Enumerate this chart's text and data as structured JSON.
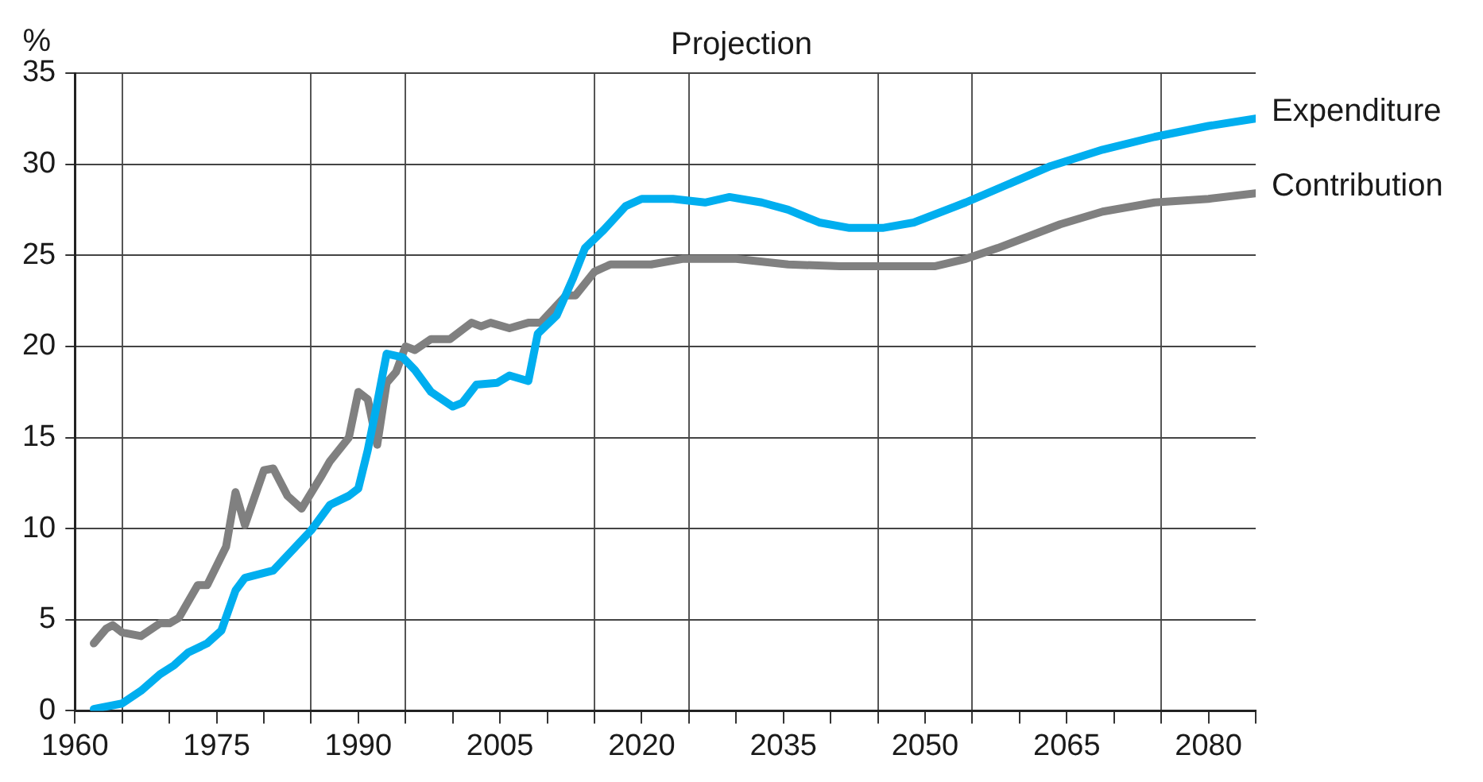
{
  "chart_data": {
    "type": "line",
    "title": "Projection",
    "ylabel": "%",
    "xlim": [
      1960,
      2085
    ],
    "xticks": [
      1960,
      {
        "value": 1965,
        "label": null
      },
      {
        "value": 1970,
        "label": null
      },
      1975,
      {
        "value": 1980,
        "label": null
      },
      {
        "value": 1985,
        "label": null
      },
      1990,
      {
        "value": 1995,
        "label": null
      },
      {
        "value": 2000,
        "label": null
      },
      2005,
      {
        "value": 2010,
        "label": null
      },
      {
        "value": 2015,
        "label": null
      },
      2020,
      {
        "value": 2025,
        "label": null
      },
      {
        "value": 2030,
        "label": null
      },
      2035,
      {
        "value": 2040,
        "label": null
      },
      {
        "value": 2045,
        "label": null
      },
      2050,
      {
        "value": 2055,
        "label": null
      },
      {
        "value": 2060,
        "label": null
      },
      2065,
      {
        "value": 2070,
        "label": null
      },
      {
        "value": 2075,
        "label": null
      },
      2080,
      {
        "value": 2085,
        "label": null
      }
    ],
    "ylim": [
      0,
      35
    ],
    "yticks": [
      0,
      5,
      10,
      15,
      20,
      25,
      30,
      35
    ],
    "grid": true,
    "legend": false,
    "marker": "none",
    "line_style": "solid",
    "series": [
      {
        "name": "Expenditure",
        "color": "#00aeef",
        "x": [
          1962,
          1965,
          1967,
          1969,
          1970.5,
          1972,
          1974,
          1975.5,
          1977,
          1978,
          1981,
          1985,
          1987,
          1989,
          1990,
          1991,
          1992,
          1993,
          1994.7,
          1996,
          1997.7,
          2000,
          2001,
          2002.5,
          2004.7,
          2006,
          2008,
          2009,
          2011,
          2012.7,
          2014,
          2016,
          2018.3,
          2020,
          2023.3,
          2026.7,
          2029.3,
          2032.7,
          2035.5,
          2038.8,
          2042,
          2045.5,
          2048.8,
          2054.3,
          2063.3,
          2068.8,
          2074.3,
          2080,
          2085
        ],
        "values": [
          0.1,
          0.4,
          1.1,
          2.0,
          2.5,
          3.2,
          3.7,
          4.4,
          6.6,
          7.3,
          7.7,
          9.9,
          11.3,
          11.8,
          12.2,
          14.3,
          16.9,
          19.6,
          19.4,
          18.7,
          17.5,
          16.7,
          16.9,
          17.9,
          18.0,
          18.4,
          18.1,
          20.7,
          21.7,
          23.7,
          25.4,
          26.4,
          27.7,
          28.1,
          28.1,
          27.9,
          28.2,
          27.9,
          27.5,
          26.8,
          26.5,
          26.5,
          26.8,
          27.9,
          29.9,
          30.8,
          31.5,
          32.1,
          32.5
        ]
      },
      {
        "name": "Contribution",
        "color": "#808080",
        "x": [
          1962,
          1963.3,
          1964,
          1965,
          1967,
          1969,
          1970,
          1971,
          1973,
          1974,
          1976,
          1977,
          1978,
          1980,
          1981,
          1982.5,
          1984,
          1986,
          1987,
          1989,
          1990,
          1991,
          1992,
          1993,
          1994,
          1995,
          1996,
          1997.7,
          1999.7,
          2002,
          2003,
          2004,
          2006,
          2008,
          2009.3,
          2012,
          2013,
          2015,
          2016.7,
          2021,
          2024.3,
          2030,
          2035.5,
          2041,
          2051,
          2054.3,
          2057.7,
          2064.3,
          2068.8,
          2074.3,
          2080,
          2085
        ],
        "values": [
          3.7,
          4.5,
          4.7,
          4.3,
          4.1,
          4.8,
          4.8,
          5.1,
          6.9,
          6.9,
          9.0,
          12.0,
          10.2,
          13.2,
          13.3,
          11.8,
          11.1,
          12.8,
          13.7,
          15.0,
          17.5,
          17.1,
          14.6,
          18.0,
          18.6,
          20.0,
          19.8,
          20.4,
          20.4,
          21.3,
          21.1,
          21.3,
          21.0,
          21.3,
          21.3,
          22.8,
          22.8,
          24.1,
          24.5,
          24.5,
          24.8,
          24.8,
          24.5,
          24.4,
          24.4,
          24.8,
          25.4,
          26.7,
          27.4,
          27.9,
          28.1,
          28.4
        ]
      }
    ]
  }
}
